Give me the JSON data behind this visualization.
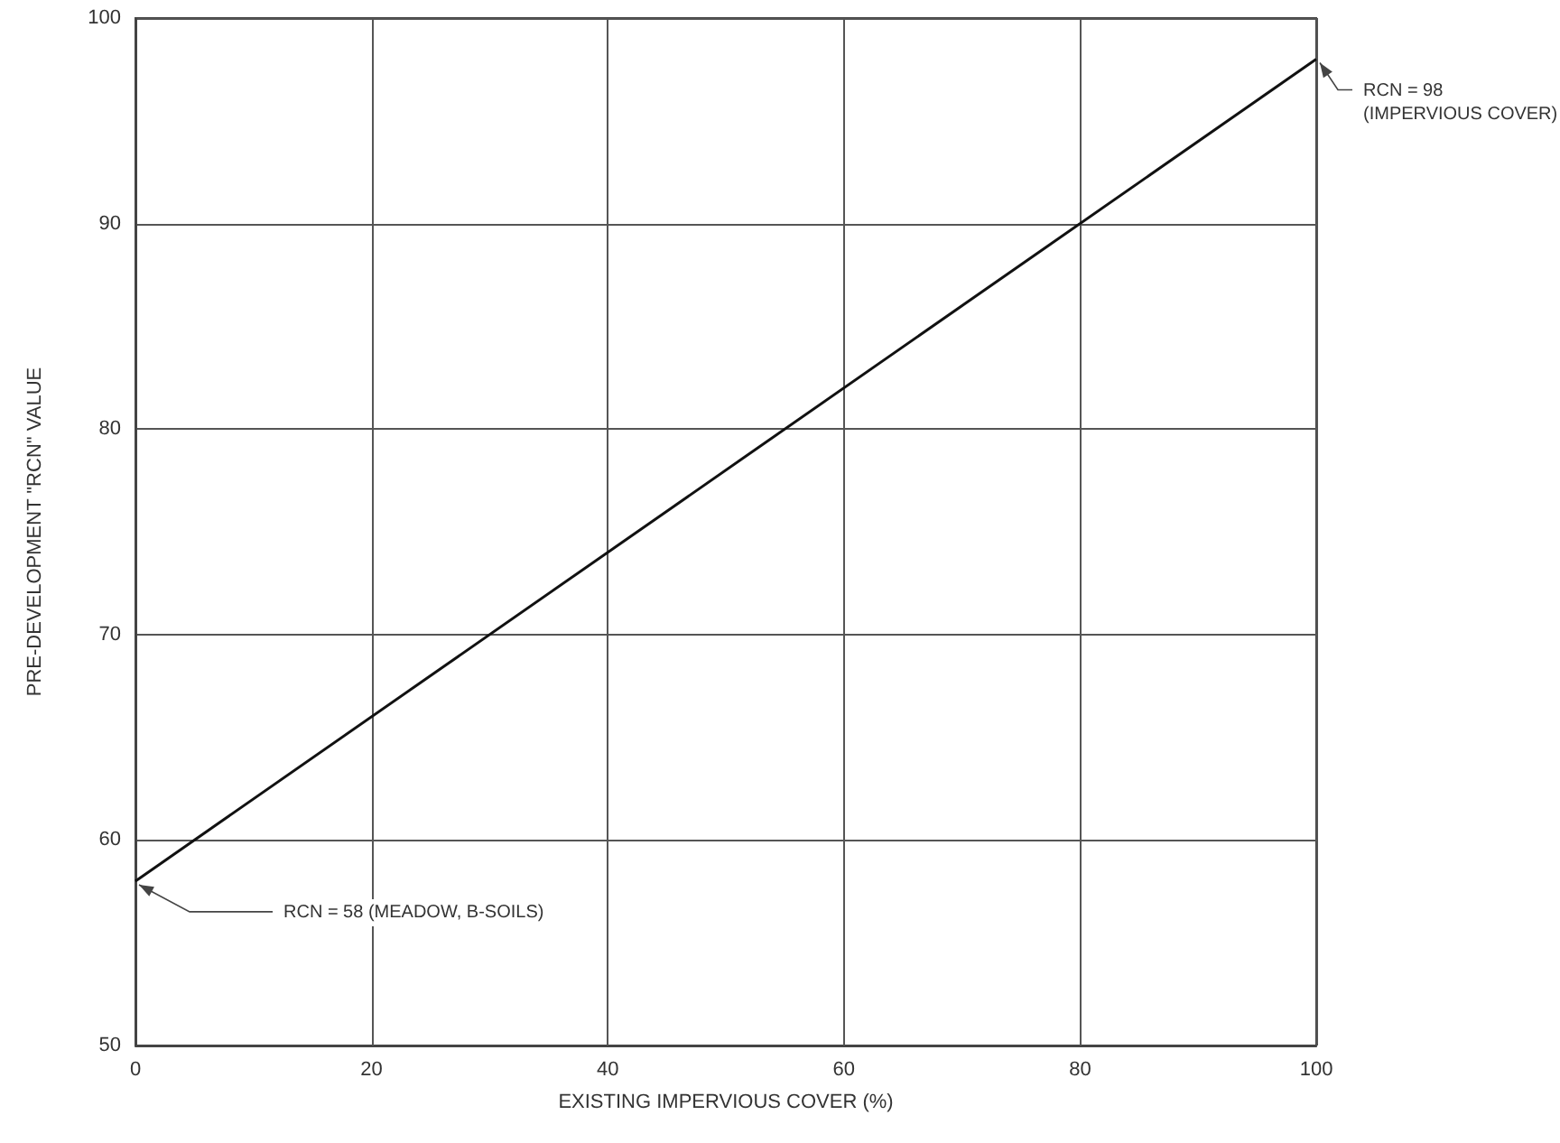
{
  "chart_data": {
    "type": "line",
    "xlabel": "EXISTING IMPERVIOUS COVER (%)",
    "ylabel": "PRE-DEVELOPMENT \"RCN\" VALUE",
    "x": [
      0,
      100
    ],
    "series": [
      {
        "color": "#111111",
        "values": [
          58,
          98
        ]
      }
    ],
    "xlim": [
      0,
      100
    ],
    "xticks": [
      0,
      20,
      40,
      60,
      80,
      100
    ],
    "ylim": [
      50,
      100
    ],
    "yticks": [
      50,
      60,
      70,
      80,
      90,
      100
    ],
    "grid": true,
    "marker": "none",
    "line_style": "solid",
    "annotations": [
      {
        "text": "RCN = 98\n(IMPERVIOUS COVER)",
        "x": 100,
        "y": 98
      },
      {
        "text": "RCN = 58 (MEADOW, B-SOILS)",
        "x": 0,
        "y": 58
      }
    ]
  }
}
